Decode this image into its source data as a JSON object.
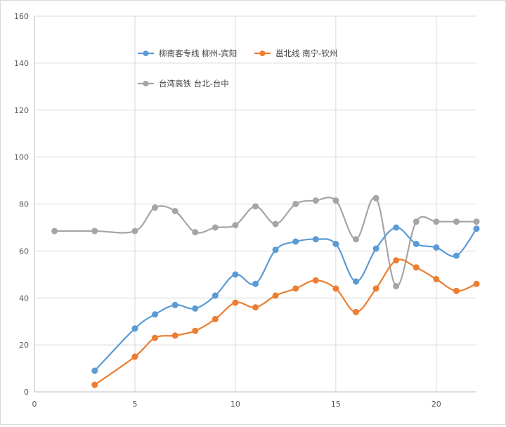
{
  "chart_data": {
    "type": "scatter",
    "mode": "smooth-lines-markers",
    "title": "",
    "xlabel": "",
    "ylabel": "",
    "xlim": [
      0,
      22
    ],
    "ylim": [
      0,
      160
    ],
    "x_ticks": [
      0,
      5,
      10,
      15,
      20
    ],
    "y_ticks": [
      0,
      20,
      40,
      60,
      80,
      100,
      120,
      140,
      160
    ],
    "grid": "vertical-and-horizontal",
    "legend_position": "top-left-inside",
    "series": [
      {
        "name": "柳南客专线 柳州-宾阳",
        "color": "#5b9bd5",
        "points": [
          [
            3,
            9
          ],
          [
            5,
            27
          ],
          [
            6,
            33
          ],
          [
            7,
            37
          ],
          [
            8,
            35.5
          ],
          [
            9,
            41
          ],
          [
            10,
            50
          ],
          [
            11,
            46
          ],
          [
            12,
            60.5
          ],
          [
            13,
            64
          ],
          [
            14,
            65
          ],
          [
            15,
            63
          ],
          [
            16,
            47
          ],
          [
            17,
            61
          ],
          [
            18,
            70
          ],
          [
            19,
            63
          ],
          [
            20,
            61.5
          ],
          [
            21,
            58
          ],
          [
            22,
            69.5
          ]
        ]
      },
      {
        "name": "邕北线 南宁-钦州",
        "color": "#ed7d31",
        "points": [
          [
            3,
            3
          ],
          [
            5,
            15
          ],
          [
            6,
            23
          ],
          [
            7,
            24
          ],
          [
            8,
            26
          ],
          [
            9,
            31
          ],
          [
            10,
            38
          ],
          [
            11,
            36
          ],
          [
            12,
            41
          ],
          [
            13,
            44
          ],
          [
            14,
            47.5
          ],
          [
            15,
            44
          ],
          [
            16,
            34
          ],
          [
            17,
            44
          ],
          [
            18,
            56
          ],
          [
            19,
            53
          ],
          [
            20,
            48
          ],
          [
            21,
            43
          ],
          [
            22,
            46
          ]
        ]
      },
      {
        "name": "台湾高铁 台北-台中",
        "color": "#a5a5a5",
        "points": [
          [
            1,
            68.5
          ],
          [
            3,
            68.5
          ],
          [
            5,
            68.5
          ],
          [
            6,
            78.5
          ],
          [
            7,
            77
          ],
          [
            8,
            68
          ],
          [
            9,
            70
          ],
          [
            10,
            71
          ],
          [
            11,
            79
          ],
          [
            12,
            71.5
          ],
          [
            13,
            80
          ],
          [
            14,
            81.5
          ],
          [
            15,
            81.5
          ],
          [
            16,
            65
          ],
          [
            17,
            82.5
          ],
          [
            18,
            45
          ],
          [
            19,
            72.5
          ],
          [
            20,
            72.5
          ],
          [
            21,
            72.5
          ],
          [
            22,
            72.5
          ]
        ]
      }
    ]
  }
}
